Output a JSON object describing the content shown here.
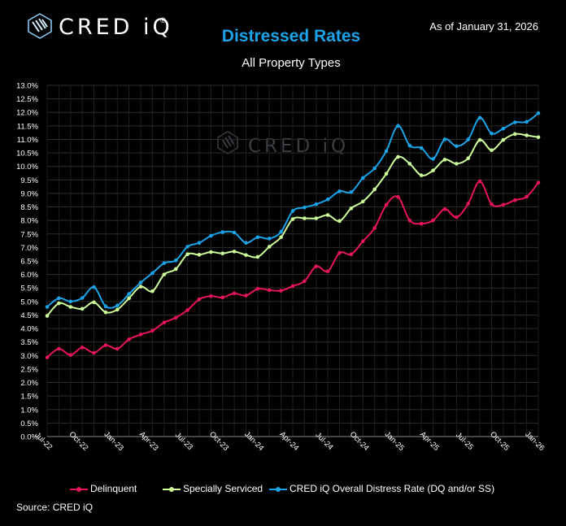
{
  "header": {
    "logo_text": "CRED iQ",
    "logo_registered": "®",
    "as_of": "As of January 31, 2026",
    "title": "Distressed Rates",
    "subtitle": "All Property Types",
    "watermark": "CRED iQ"
  },
  "footer": {
    "source": "Source:  CRED iQ"
  },
  "colors": {
    "background": "#000000",
    "title": "#1aa3e8",
    "delinquent": "#e8145f",
    "specially_serviced": "#ccff99",
    "overall": "#1aa3e8"
  },
  "chart_data": {
    "type": "line",
    "title": "Distressed Rates",
    "subtitle": "All Property Types",
    "ylim": [
      0,
      13
    ],
    "y_ticks": [
      "0.0%",
      "0.5%",
      "1.0%",
      "1.5%",
      "2.0%",
      "2.5%",
      "3.0%",
      "3.5%",
      "4.0%",
      "4.5%",
      "5.0%",
      "5.5%",
      "6.0%",
      "6.5%",
      "7.0%",
      "7.5%",
      "8.0%",
      "8.5%",
      "9.0%",
      "9.5%",
      "10.0%",
      "10.5%",
      "11.0%",
      "11.5%",
      "12.0%",
      "12.5%",
      "13.0%"
    ],
    "x_tick_labels": [
      "Jul-22",
      "Oct-22",
      "Jan-23",
      "Apr-23",
      "Jul-23",
      "Oct-23",
      "Jan-24",
      "Apr-24",
      "Jul-24",
      "Oct-24",
      "Jan-25",
      "Apr-25",
      "Jul-25",
      "Oct-25",
      "Jan-26"
    ],
    "x": [
      "Jul-22",
      "Aug-22",
      "Sep-22",
      "Oct-22",
      "Nov-22",
      "Dec-22",
      "Jan-23",
      "Feb-23",
      "Mar-23",
      "Apr-23",
      "May-23",
      "Jun-23",
      "Jul-23",
      "Aug-23",
      "Sep-23",
      "Oct-23",
      "Nov-23",
      "Dec-23",
      "Jan-24",
      "Feb-24",
      "Mar-24",
      "Apr-24",
      "May-24",
      "Jun-24",
      "Jul-24",
      "Aug-24",
      "Sep-24",
      "Oct-24",
      "Nov-24",
      "Dec-24",
      "Jan-25",
      "Feb-25",
      "Mar-25",
      "Apr-25",
      "May-25",
      "Jun-25",
      "Jul-25",
      "Aug-25",
      "Sep-25",
      "Oct-25",
      "Nov-25",
      "Dec-25",
      "Jan-26"
    ],
    "grid": true,
    "legend_position": "bottom",
    "series": [
      {
        "name": "Delinquent",
        "color": "#e8145f",
        "values": [
          2.93,
          3.25,
          3.02,
          3.3,
          3.1,
          3.38,
          3.25,
          3.6,
          3.78,
          3.92,
          4.22,
          4.4,
          4.68,
          5.08,
          5.2,
          5.15,
          5.3,
          5.22,
          5.47,
          5.42,
          5.4,
          5.57,
          5.75,
          6.3,
          6.12,
          6.8,
          6.75,
          7.23,
          7.72,
          8.58,
          8.87,
          8.0,
          7.88,
          8.0,
          8.42,
          8.12,
          8.62,
          9.45,
          8.6,
          8.58,
          8.75,
          8.88,
          9.4
        ]
      },
      {
        "name": "Specially Serviced",
        "color": "#ccff99",
        "values": [
          4.47,
          4.93,
          4.8,
          4.73,
          4.97,
          4.6,
          4.7,
          5.12,
          5.55,
          5.38,
          6.0,
          6.2,
          6.75,
          6.73,
          6.83,
          6.78,
          6.85,
          6.72,
          6.65,
          7.03,
          7.38,
          8.05,
          8.08,
          8.08,
          8.2,
          7.98,
          8.45,
          8.7,
          9.15,
          9.73,
          10.35,
          10.1,
          9.67,
          9.85,
          10.25,
          10.1,
          10.3,
          10.98,
          10.6,
          10.98,
          11.2,
          11.15,
          11.08
        ]
      },
      {
        "name": "CRED iQ Overall Distress Rate (DQ and/or SS)",
        "color": "#1aa3e8",
        "values": [
          4.8,
          5.12,
          5.0,
          5.13,
          5.53,
          4.82,
          4.85,
          5.28,
          5.7,
          6.05,
          6.42,
          6.52,
          7.03,
          7.17,
          7.43,
          7.57,
          7.55,
          7.17,
          7.38,
          7.33,
          7.58,
          8.35,
          8.48,
          8.6,
          8.78,
          9.08,
          9.05,
          9.57,
          9.93,
          10.57,
          11.5,
          10.77,
          10.68,
          10.28,
          11.0,
          10.75,
          11.0,
          11.8,
          11.22,
          11.4,
          11.63,
          11.65,
          11.97
        ]
      }
    ]
  }
}
